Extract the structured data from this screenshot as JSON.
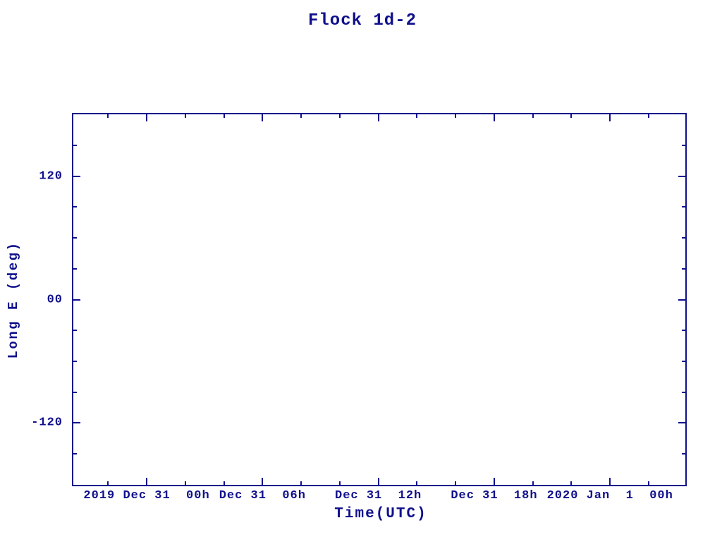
{
  "page": {
    "background": "#ffffff",
    "accent_color": "#10108c"
  },
  "chart_data": {
    "type": "line",
    "title": "Flock 1d-2",
    "xlabel": "Time(UTC)",
    "ylabel": "Long E (deg)",
    "grid": false,
    "legend": false,
    "series": [],
    "x_axis": {
      "unit": "hours relative to 2019 Dec 31 00h UTC",
      "range": [
        -3.8,
        27.9
      ],
      "major_ticks": [
        {
          "value": 0,
          "label": "2019 Dec 31  00h"
        },
        {
          "value": 6,
          "label": "Dec 31  06h"
        },
        {
          "value": 12,
          "label": "Dec 31  12h"
        },
        {
          "value": 18,
          "label": "Dec 31  18h"
        },
        {
          "value": 24,
          "label": "2020 Jan  1  00h"
        }
      ],
      "minor_tick_values": [
        -2,
        2,
        4,
        8,
        10,
        14,
        16,
        20,
        22,
        26
      ]
    },
    "y_axis": {
      "range": [
        -180,
        180
      ],
      "major_ticks": [
        {
          "value": 120,
          "label": "120"
        },
        {
          "value": 0,
          "label": "00"
        },
        {
          "value": -120,
          "label": "-120"
        }
      ],
      "minor_tick_values": [
        150,
        90,
        60,
        30,
        -30,
        -60,
        -90,
        -150
      ]
    }
  }
}
